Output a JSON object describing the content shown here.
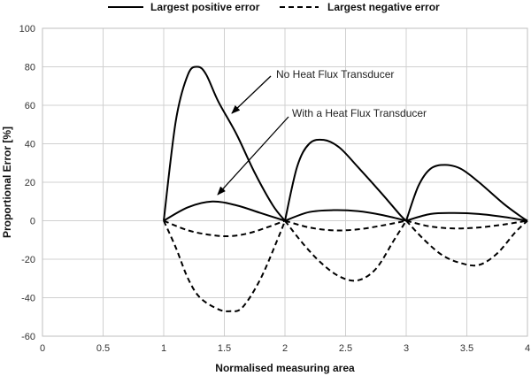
{
  "chart_data": {
    "type": "line",
    "title": "",
    "xlabel": "Normalised measuring area",
    "ylabel": "Proportional Error [%]",
    "xlim": [
      0,
      4
    ],
    "ylim": [
      -60,
      100
    ],
    "xticks": [
      0,
      0.5,
      1,
      1.5,
      2,
      2.5,
      3,
      3.5,
      4
    ],
    "xtick_labels": [
      "0",
      "0.5",
      "1",
      "1.5",
      "2",
      "2.5",
      "3",
      "3.5",
      "4"
    ],
    "yticks": [
      -60,
      -40,
      -20,
      0,
      20,
      40,
      60,
      80,
      100
    ],
    "ytick_labels": [
      "-60",
      "-40",
      "-20",
      "0",
      "20",
      "40",
      "60",
      "80",
      "100"
    ],
    "grid": true,
    "legend_position": "top",
    "legend": [
      {
        "label": "Largest positive error",
        "style": "solid"
      },
      {
        "label": "Largest negative error",
        "style": "dashed"
      }
    ],
    "annotations": [
      {
        "text": "No Heat Flux Transducer"
      },
      {
        "text": "With a Heat Flux Transducer"
      }
    ],
    "series": [
      {
        "style": "solid",
        "x": [
          1.0,
          1.1,
          1.2,
          1.28,
          1.35,
          1.45,
          1.6,
          1.75,
          1.9,
          2.0,
          2.1,
          2.2,
          2.32,
          2.45,
          2.6,
          2.8,
          2.95,
          3.0,
          3.1,
          3.2,
          3.32,
          3.45,
          3.6,
          3.8,
          3.95,
          4.0
        ],
        "y": [
          0,
          52,
          76,
          80,
          76,
          62,
          45,
          25,
          8,
          0,
          28,
          40,
          42,
          38,
          28,
          14,
          3,
          0,
          18,
          27,
          29,
          27,
          20,
          9,
          2,
          0
        ]
      },
      {
        "style": "solid",
        "x": [
          1.0,
          1.2,
          1.4,
          1.6,
          1.8,
          2.0,
          2.2,
          2.4,
          2.6,
          2.8,
          3.0,
          3.2,
          3.4,
          3.6,
          3.8,
          4.0
        ],
        "y": [
          0,
          7,
          10,
          8,
          4,
          0,
          4.5,
          5.5,
          5,
          3,
          0,
          3.5,
          4,
          3.5,
          2,
          0
        ]
      },
      {
        "style": "dashed",
        "x": [
          1.0,
          1.2,
          1.4,
          1.55,
          1.7,
          1.85,
          2.0,
          2.2,
          2.4,
          2.6,
          2.8,
          3.0,
          3.2,
          3.4,
          3.6,
          3.8,
          4.0
        ],
        "y": [
          0,
          -5,
          -7.5,
          -8,
          -6.5,
          -3.5,
          0,
          -3.5,
          -5,
          -4.5,
          -2.5,
          0,
          -3,
          -4,
          -3.5,
          -2,
          0
        ]
      },
      {
        "style": "dashed",
        "x": [
          1.0,
          1.1,
          1.2,
          1.3,
          1.45,
          1.55,
          1.65,
          1.8,
          1.95,
          2.0,
          2.15,
          2.3,
          2.45,
          2.6,
          2.75,
          2.9,
          3.0,
          3.15,
          3.3,
          3.45,
          3.6,
          3.75,
          3.9,
          4.0
        ],
        "y": [
          0,
          -14,
          -30,
          -40,
          -46,
          -47,
          -45,
          -30,
          -8,
          0,
          -12,
          -22,
          -29,
          -31,
          -25,
          -10,
          0,
          -10,
          -18,
          -22,
          -23,
          -17,
          -6,
          0
        ]
      }
    ]
  }
}
